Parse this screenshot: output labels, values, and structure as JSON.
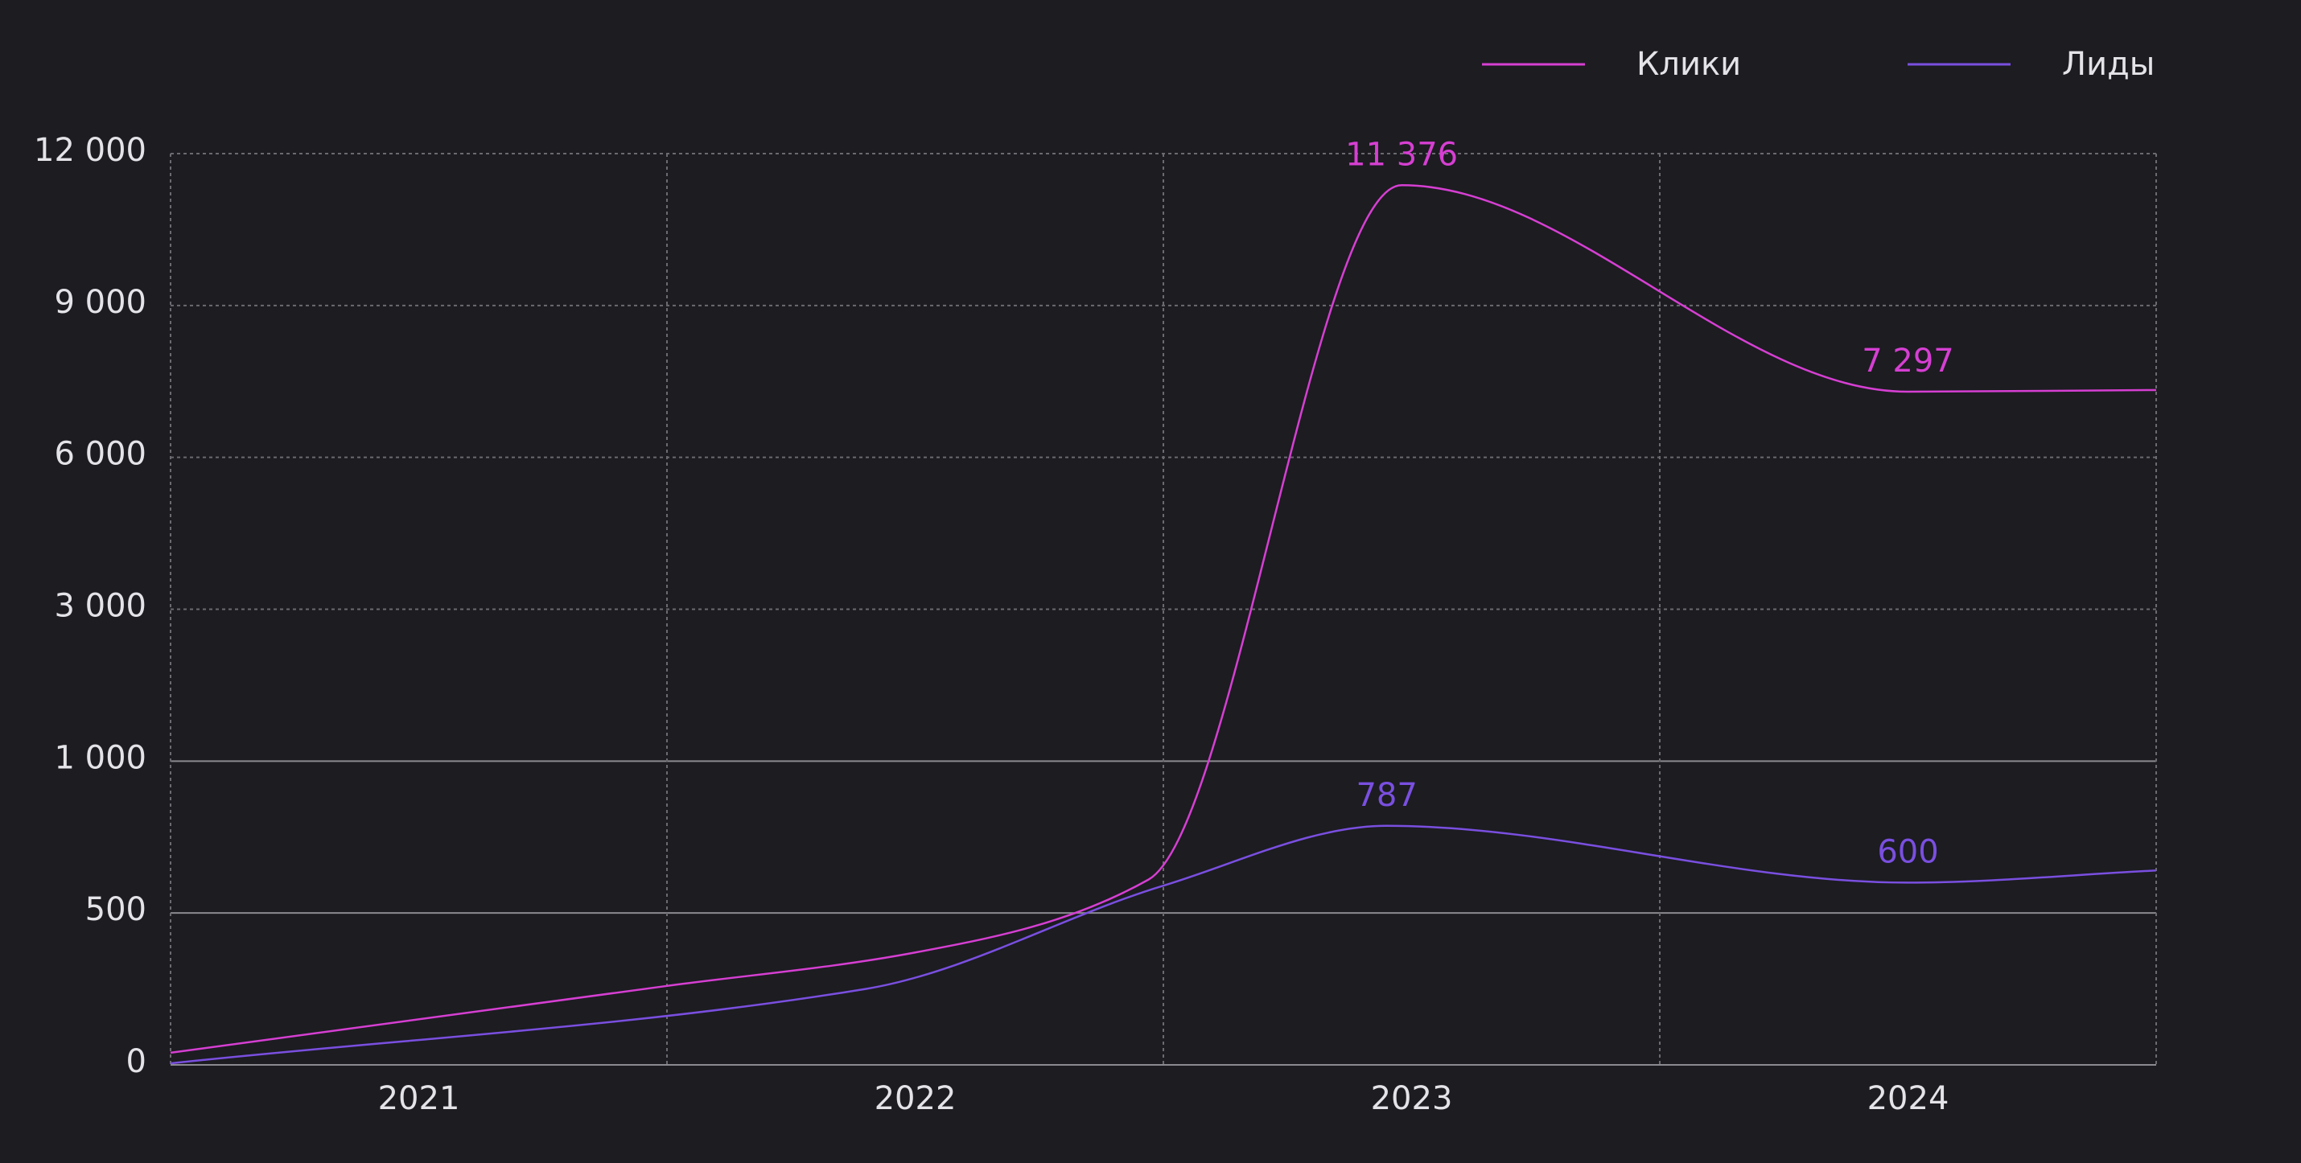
{
  "chart_data": {
    "type": "line",
    "x": [
      2020.5,
      2021.5,
      2022.0,
      2022.47,
      2022.98,
      2024.0,
      2024.5
    ],
    "xlim": [
      2020.5,
      2024.5
    ],
    "xticks": [
      2021,
      2022,
      2023,
      2024
    ],
    "ylim": [
      0,
      12000
    ],
    "y_scale": "piecewise",
    "yticks": [
      0,
      500,
      {
        "value": 1000,
        "label": "1 000"
      },
      {
        "value": 3000,
        "label": "3 000"
      },
      {
        "value": 6000,
        "label": "6 000"
      },
      {
        "value": 9000,
        "label": "9 000"
      },
      {
        "value": 12000,
        "label": "12 000"
      }
    ],
    "grid": true,
    "legend": "top-right",
    "series": [
      {
        "name": "Клики",
        "color": "#d63fd2",
        "x": [
          2020.5,
          2021.5,
          2022.0,
          2022.47,
          2022.98,
          2024.0,
          2024.5
        ],
        "values": [
          40,
          260,
          370,
          610,
          11376,
          7297,
          7330
        ],
        "value_labels": [
          null,
          null,
          null,
          null,
          "11 376",
          "7 297",
          null
        ]
      },
      {
        "name": "Лиды",
        "color": "#7a4fe0",
        "x": [
          2020.5,
          2021.9,
          2022.5,
          2022.95,
          2024.0,
          2024.5
        ],
        "values": [
          5,
          250,
          590,
          787,
          600,
          640
        ],
        "value_labels": [
          null,
          null,
          null,
          "787",
          "600",
          null
        ]
      }
    ]
  }
}
